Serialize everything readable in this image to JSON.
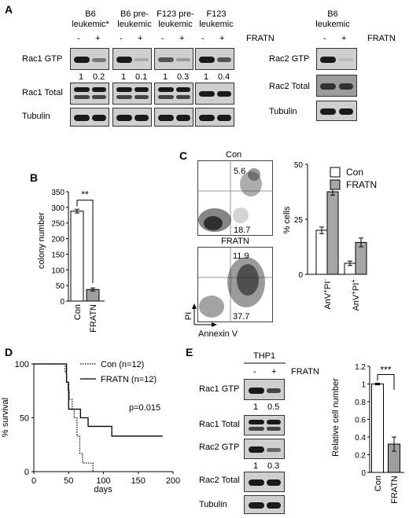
{
  "panel_a": {
    "label": "A",
    "groups": [
      "B6 leukemic*",
      "B6 pre-leukemic",
      "F123 pre-leukemic",
      "F123 leukemic"
    ],
    "group_lines": [
      [
        "B6",
        "leukemic*"
      ],
      [
        "B6 pre-",
        "leukemic"
      ],
      [
        "F123 pre-",
        "leukemic"
      ],
      [
        "F123",
        "leukemic"
      ]
    ],
    "lane_signs": [
      "-",
      "+"
    ],
    "fratn_label": "FRATN",
    "rows": [
      "Rac1 GTP",
      "Rac1 Total",
      "Tubulin"
    ],
    "rac1_gtp_values": [
      [
        "1",
        "0.2"
      ],
      [
        "1",
        "0.1"
      ],
      [
        "1",
        "0.3"
      ],
      [
        "1",
        "0.4"
      ]
    ],
    "right_group": [
      "B6",
      "leukemic"
    ],
    "right_rows": [
      "Rac2 GTP",
      "Rac2 Total",
      "Tubulin"
    ]
  },
  "panel_b": {
    "label": "B",
    "chart_data": {
      "type": "bar",
      "categories": [
        "Con",
        "FRATN"
      ],
      "values": [
        288,
        37
      ],
      "errors": [
        6,
        5
      ],
      "ylabel": "colony number",
      "ylim": [
        0,
        350
      ],
      "yticks": [
        "0",
        "50",
        "100",
        "150",
        "200",
        "250",
        "300",
        "350"
      ],
      "significance": "**",
      "colors": [
        "#ffffff",
        "#9e9e9e"
      ]
    }
  },
  "panel_c": {
    "label": "C",
    "facs": [
      {
        "title": "Con",
        "top": "5.6",
        "bottom": "18.7"
      },
      {
        "title": "FRATN",
        "top": "11.9",
        "bottom": "37.7"
      }
    ],
    "y_axis": "PI",
    "x_axis": "Annexin V",
    "chart_data": {
      "type": "bar",
      "categories": [
        "AnV+PI-",
        "AnV+PI+"
      ],
      "category_display": [
        {
          "main": "AnV",
          "sup1": "+",
          "mid": "PI",
          "sup2": "-"
        },
        {
          "main": "AnV",
          "sup1": "+",
          "mid": "PI",
          "sup2": "+"
        }
      ],
      "series": [
        {
          "name": "Con",
          "values": [
            20,
            5
          ],
          "errors": [
            1.5,
            1
          ],
          "color": "#ffffff"
        },
        {
          "name": "FRATN",
          "values": [
            37.5,
            14.5
          ],
          "errors": [
            1.5,
            2
          ],
          "color": "#a6a6a6"
        }
      ],
      "ylabel": "% cells",
      "ylim": [
        0,
        50
      ],
      "yticks": [
        "0",
        "25",
        "50"
      ],
      "legend": "top-right"
    }
  },
  "panel_d": {
    "label": "D",
    "chart_data": {
      "type": "line",
      "xlabel": "days",
      "ylabel": "% survival",
      "xlim": [
        0,
        200
      ],
      "ylim": [
        0,
        100
      ],
      "xticks": [
        "0",
        "50",
        "100",
        "150",
        "200"
      ],
      "yticks": [
        "0",
        "50",
        "100"
      ],
      "series": [
        {
          "name": "Con (n=12)",
          "style": "dotted",
          "x": [
            0,
            43,
            45,
            47,
            49,
            51,
            55,
            58,
            62,
            66,
            70,
            85
          ],
          "y": [
            100,
            100,
            92,
            83,
            75,
            67,
            58,
            50,
            33,
            17,
            8,
            0
          ]
        },
        {
          "name": "FRATN (n=12)",
          "style": "solid",
          "x": [
            0,
            44,
            47,
            50,
            67,
            78,
            112,
            185
          ],
          "y": [
            100,
            100,
            83,
            58,
            50,
            42,
            33,
            33
          ]
        }
      ],
      "annotation": "p=0.015"
    }
  },
  "panel_e": {
    "label": "E",
    "cell_line": "THP1",
    "lane_signs": [
      "-",
      "+"
    ],
    "fratn_label": "FRATN",
    "rows": [
      "Rac1 GTP",
      "Rac1 Total",
      "Rac2 GTP",
      "Rac2 Total",
      "Tubulin"
    ],
    "rac1_values": [
      "1",
      "0.5"
    ],
    "rac2_values": [
      "1",
      "0.3"
    ],
    "chart_data": {
      "type": "bar",
      "categories": [
        "Con",
        "FRATN"
      ],
      "values": [
        1.0,
        0.32
      ],
      "errors": [
        0.01,
        0.08
      ],
      "ylabel": "Relative cell number",
      "ylim": [
        0,
        1.2
      ],
      "yticks": [
        "0",
        "0.2",
        "0.4",
        "0.6",
        "0.8",
        "1",
        "1.2"
      ],
      "significance": "***",
      "colors": [
        "#ffffff",
        "#9e9e9e"
      ]
    }
  }
}
